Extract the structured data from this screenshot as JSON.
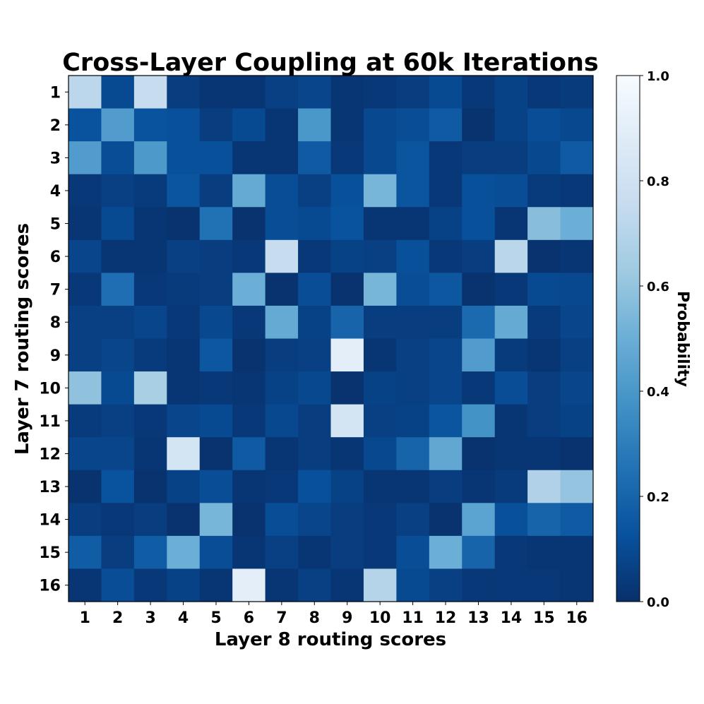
{
  "chart_data": {
    "type": "heatmap",
    "title": "Cross-Layer Coupling at 60k Iterations",
    "xlabel": "Layer 8 routing scores",
    "ylabel": "Layer 7 routing scores",
    "x_ticks": [
      "1",
      "2",
      "3",
      "4",
      "5",
      "6",
      "7",
      "8",
      "9",
      "10",
      "11",
      "12",
      "13",
      "14",
      "15",
      "16"
    ],
    "y_ticks": [
      "1",
      "2",
      "3",
      "4",
      "5",
      "6",
      "7",
      "8",
      "9",
      "10",
      "11",
      "12",
      "13",
      "14",
      "15",
      "16"
    ],
    "colorbar": {
      "label": "Probability",
      "range": [
        0,
        1
      ],
      "ticks": [
        "0.0",
        "0.2",
        "0.4",
        "0.6",
        "0.8",
        "1.0"
      ],
      "colormap": "Blues_r"
    },
    "values": [
      [
        0.72,
        0.1,
        0.76,
        0.05,
        0.02,
        0.02,
        0.06,
        0.08,
        0.02,
        0.03,
        0.05,
        0.1,
        0.03,
        0.07,
        0.03,
        0.04
      ],
      [
        0.13,
        0.42,
        0.13,
        0.12,
        0.05,
        0.1,
        0.02,
        0.4,
        0.02,
        0.09,
        0.11,
        0.16,
        0.01,
        0.07,
        0.11,
        0.09
      ],
      [
        0.42,
        0.11,
        0.41,
        0.12,
        0.12,
        0.02,
        0.02,
        0.16,
        0.03,
        0.09,
        0.14,
        0.03,
        0.05,
        0.05,
        0.09,
        0.16
      ],
      [
        0.03,
        0.06,
        0.04,
        0.14,
        0.05,
        0.48,
        0.11,
        0.06,
        0.12,
        0.53,
        0.14,
        0.03,
        0.12,
        0.11,
        0.04,
        0.03
      ],
      [
        0.02,
        0.1,
        0.02,
        0.01,
        0.25,
        0.01,
        0.11,
        0.1,
        0.13,
        0.02,
        0.02,
        0.07,
        0.12,
        0.02,
        0.57,
        0.5
      ],
      [
        0.08,
        0.02,
        0.02,
        0.06,
        0.05,
        0.03,
        0.76,
        0.03,
        0.07,
        0.06,
        0.12,
        0.03,
        0.05,
        0.71,
        0.01,
        0.02
      ],
      [
        0.03,
        0.24,
        0.03,
        0.04,
        0.05,
        0.5,
        0.01,
        0.11,
        0.01,
        0.53,
        0.11,
        0.15,
        0.01,
        0.03,
        0.1,
        0.09
      ],
      [
        0.06,
        0.06,
        0.08,
        0.03,
        0.09,
        0.03,
        0.48,
        0.07,
        0.2,
        0.05,
        0.05,
        0.05,
        0.22,
        0.48,
        0.04,
        0.08
      ],
      [
        0.06,
        0.08,
        0.04,
        0.02,
        0.15,
        0.01,
        0.05,
        0.06,
        0.9,
        0.02,
        0.06,
        0.08,
        0.42,
        0.04,
        0.02,
        0.06
      ],
      [
        0.59,
        0.1,
        0.66,
        0.02,
        0.03,
        0.02,
        0.07,
        0.09,
        0.01,
        0.07,
        0.06,
        0.08,
        0.03,
        0.11,
        0.05,
        0.08
      ],
      [
        0.04,
        0.06,
        0.03,
        0.08,
        0.1,
        0.03,
        0.09,
        0.05,
        0.82,
        0.06,
        0.07,
        0.14,
        0.38,
        0.02,
        0.05,
        0.07
      ],
      [
        0.08,
        0.08,
        0.02,
        0.82,
        0.01,
        0.16,
        0.02,
        0.05,
        0.02,
        0.09,
        0.2,
        0.47,
        0.01,
        0.02,
        0.02,
        0.01
      ],
      [
        0.01,
        0.13,
        0.01,
        0.07,
        0.11,
        0.02,
        0.03,
        0.12,
        0.07,
        0.02,
        0.02,
        0.05,
        0.02,
        0.04,
        0.68,
        0.6
      ],
      [
        0.05,
        0.03,
        0.05,
        0.01,
        0.53,
        0.01,
        0.11,
        0.08,
        0.05,
        0.03,
        0.06,
        0.01,
        0.45,
        0.12,
        0.2,
        0.16
      ],
      [
        0.17,
        0.05,
        0.17,
        0.5,
        0.11,
        0.02,
        0.06,
        0.02,
        0.05,
        0.03,
        0.11,
        0.5,
        0.2,
        0.03,
        0.02,
        0.02
      ],
      [
        0.02,
        0.11,
        0.03,
        0.07,
        0.02,
        0.9,
        0.02,
        0.06,
        0.02,
        0.7,
        0.1,
        0.06,
        0.03,
        0.03,
        0.03,
        0.02
      ]
    ]
  }
}
